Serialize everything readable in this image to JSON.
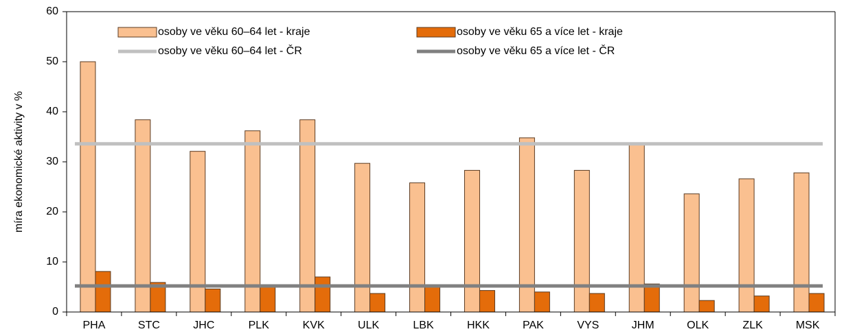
{
  "chart_data": {
    "type": "bar",
    "y_label": "míra ekonomické aktivity v %",
    "categories": [
      "PHA",
      "STC",
      "JHC",
      "PLK",
      "KVK",
      "ULK",
      "LBK",
      "HKK",
      "PAK",
      "VYS",
      "JHM",
      "OLK",
      "ZLK",
      "MSK"
    ],
    "series": [
      {
        "name": "osoby ve věku 60–64 let - kraje",
        "type": "bar",
        "color": "#fac090",
        "values": [
          50,
          38.4,
          32.1,
          36.2,
          38.4,
          29.7,
          25.8,
          28.3,
          34.8,
          28.3,
          33.7,
          23.6,
          26.6,
          27.8
        ]
      },
      {
        "name": "osoby ve věku 65 a více let - kraje",
        "type": "bar",
        "color": "#e46c0a",
        "values": [
          8.1,
          5.9,
          4.6,
          5.1,
          7.0,
          3.7,
          5.0,
          4.3,
          4.0,
          3.7,
          5.6,
          2.3,
          3.2,
          3.7
        ]
      },
      {
        "name": "osoby ve věku 60–64 let - ČR",
        "type": "line",
        "color": "#c0c0c0",
        "values": [
          33.6,
          33.6,
          33.6,
          33.6,
          33.6,
          33.6,
          33.6,
          33.6,
          33.6,
          33.6,
          33.6,
          33.6,
          33.6,
          33.6
        ]
      },
      {
        "name": "osoby ve věku 65 a více let - ČR",
        "type": "line",
        "color": "#808080",
        "values": [
          5.2,
          5.2,
          5.2,
          5.2,
          5.2,
          5.2,
          5.2,
          5.2,
          5.2,
          5.2,
          5.2,
          5.2,
          5.2,
          5.2
        ]
      }
    ],
    "ylim": [
      0,
      60
    ],
    "yticks": [
      0,
      10,
      20,
      30,
      40,
      50,
      60
    ],
    "grid": false
  }
}
